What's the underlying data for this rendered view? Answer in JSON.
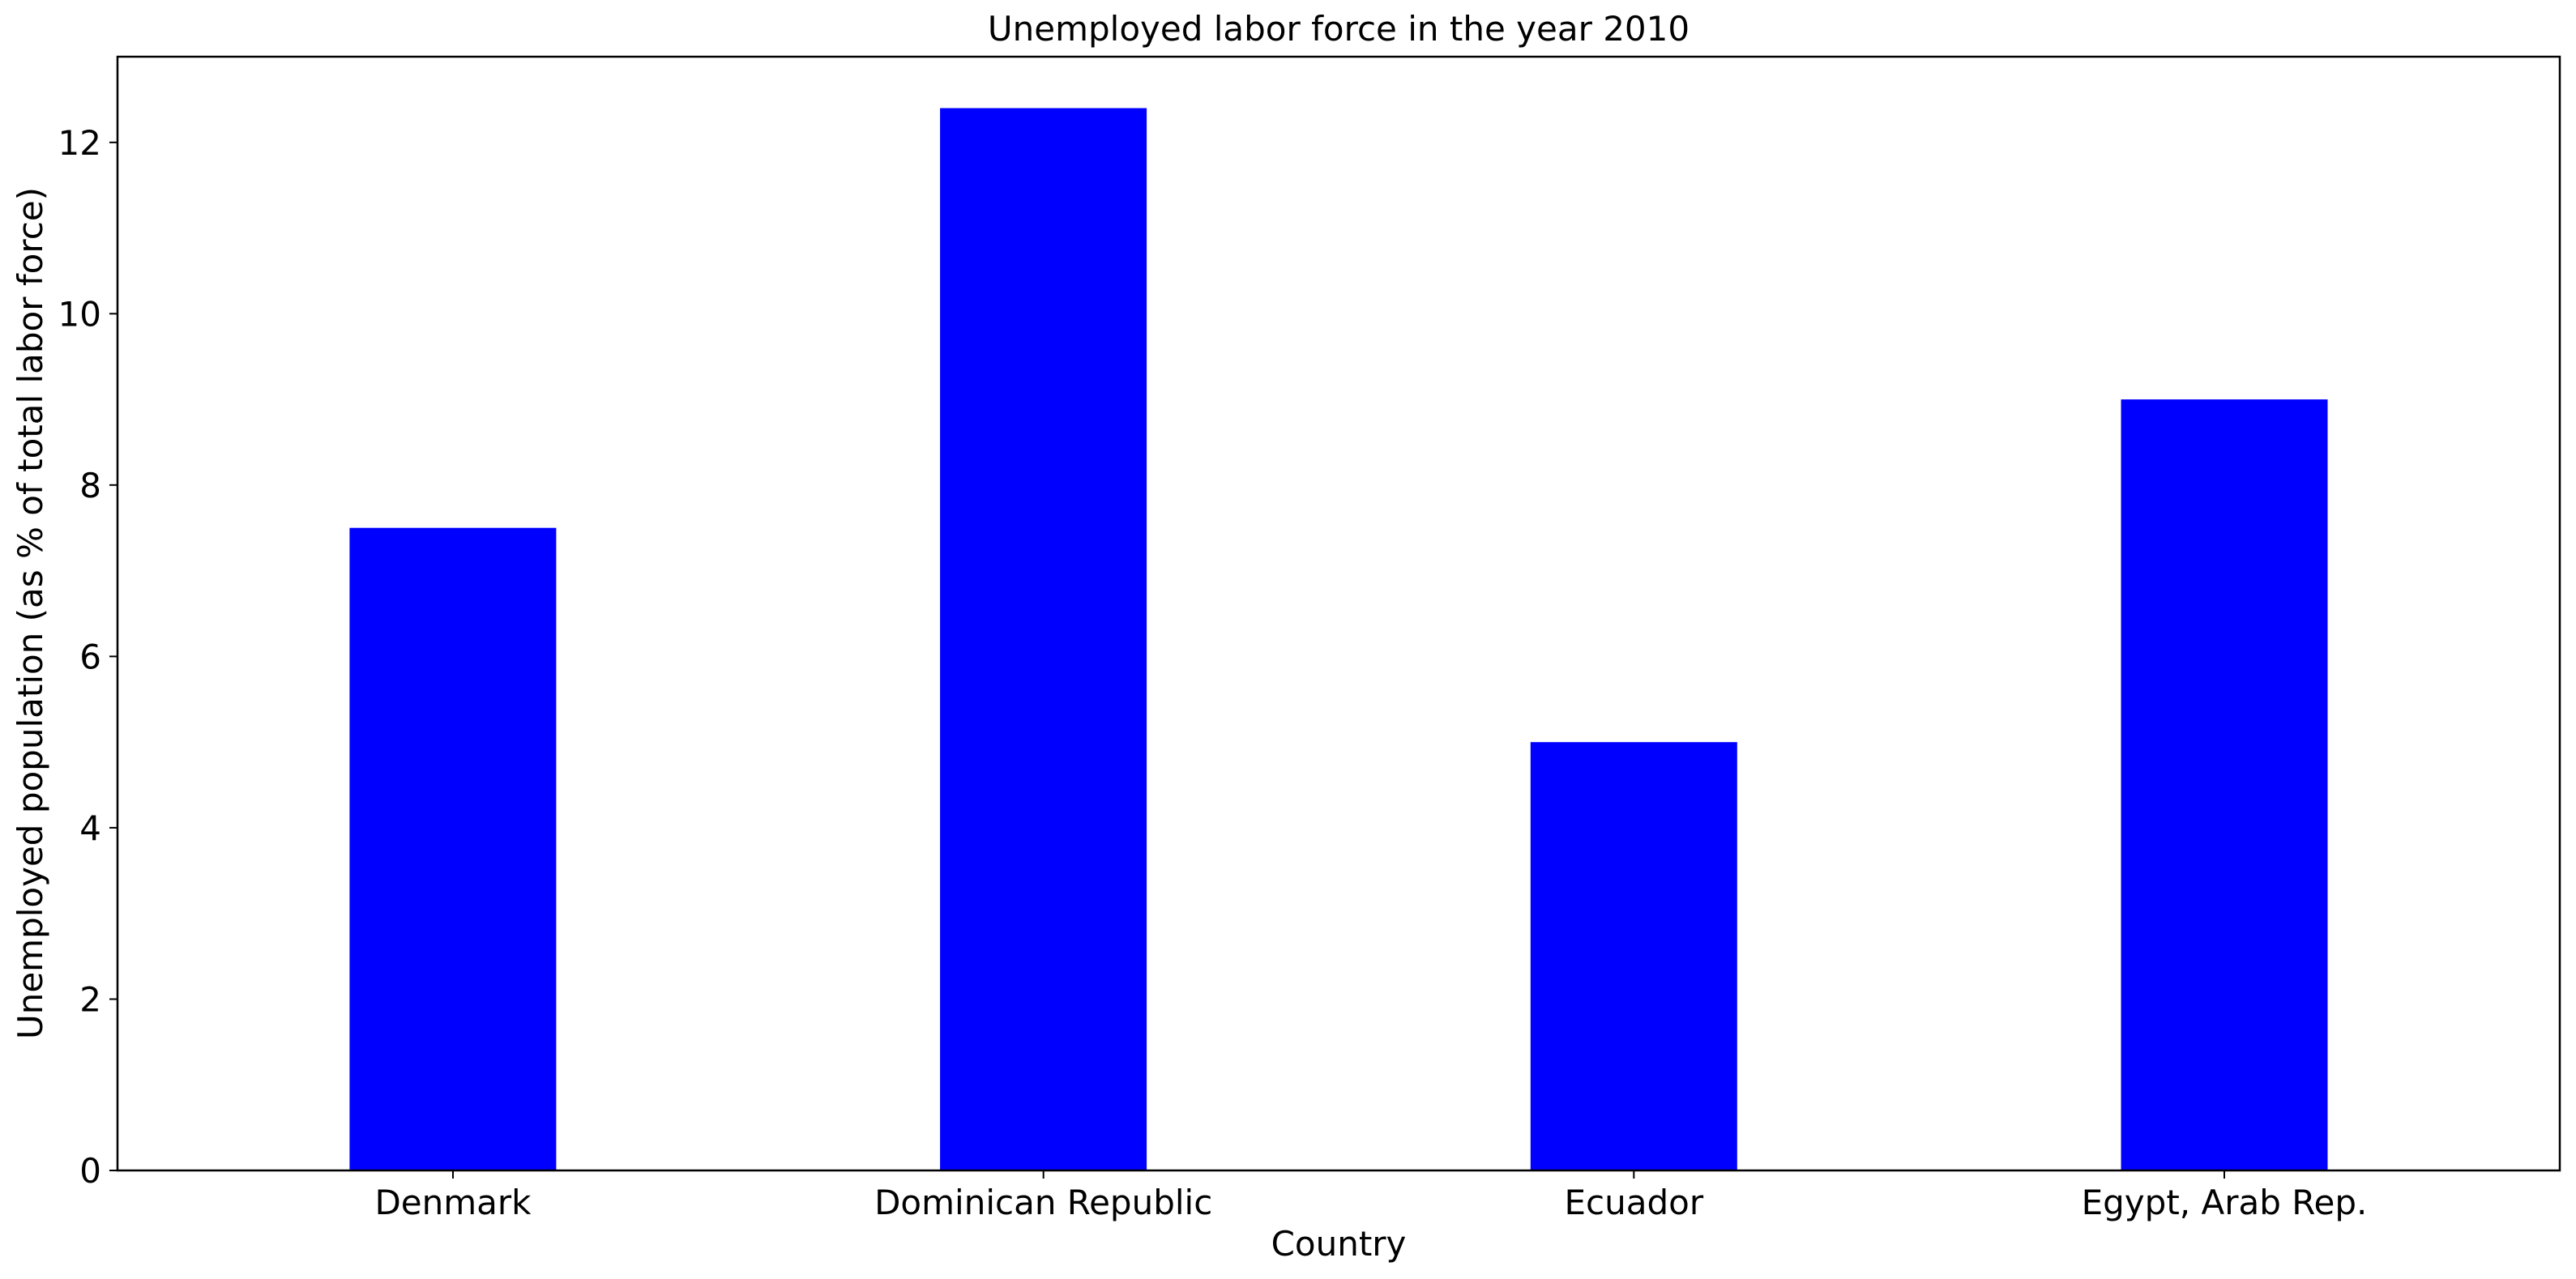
{
  "chart_data": {
    "type": "bar",
    "title": "Unemployed labor force in the year 2010",
    "xlabel": "Country",
    "ylabel": "Unemployed population (as % of total labor force)",
    "categories": [
      "Denmark",
      "Dominican Republic",
      "Ecuador",
      "Egypt, Arab Rep."
    ],
    "values": [
      7.5,
      12.4,
      5.0,
      9.0
    ],
    "ylim": [
      0,
      13
    ],
    "yticks": [
      0,
      2,
      4,
      6,
      8,
      10,
      12
    ],
    "bar_color": "#0000ff",
    "grid": false,
    "legend": "none"
  }
}
